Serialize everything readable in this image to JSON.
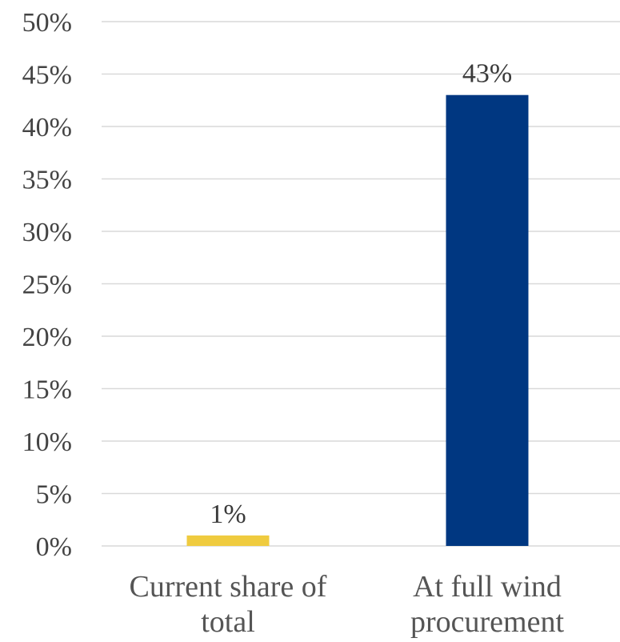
{
  "chart_data": {
    "type": "bar",
    "title": "",
    "xlabel": "",
    "ylabel": "",
    "categories": [
      [
        "Current share of",
        "total"
      ],
      [
        "At full wind",
        "procurement"
      ]
    ],
    "values": [
      1,
      43
    ],
    "data_labels": [
      "1%",
      "43%"
    ],
    "bar_colors": [
      "#EFCB3F",
      "#003781"
    ],
    "ylim": [
      0,
      50
    ],
    "y_ticks": [
      0,
      5,
      10,
      15,
      20,
      25,
      30,
      35,
      40,
      45,
      50
    ],
    "y_tick_labels": [
      "0%",
      "5%",
      "10%",
      "15%",
      "20%",
      "25%",
      "30%",
      "35%",
      "40%",
      "45%",
      "50%"
    ],
    "grid": true,
    "legend": "none"
  }
}
